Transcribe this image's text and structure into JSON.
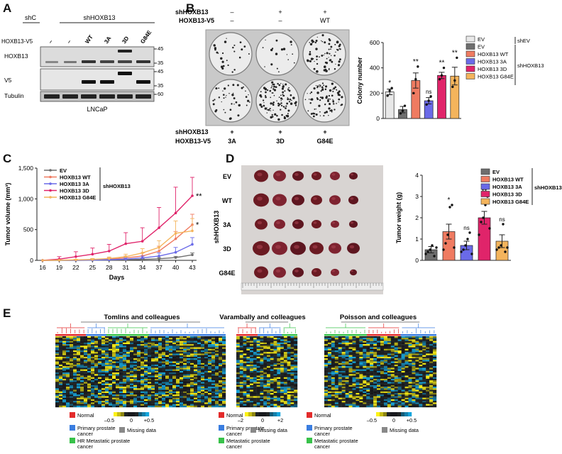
{
  "panels": {
    "A": {
      "letter": "A",
      "lanes_header": {
        "shC": "shC",
        "shHOXB13": "shHOXB13"
      },
      "row_label": "HOXB13-V5",
      "lane_labels": [
        "–",
        "–",
        "WT",
        "3A",
        "3D",
        "G84E"
      ],
      "blots": [
        {
          "name": "HOXB13",
          "markers": [
            "45",
            "35"
          ]
        },
        {
          "name": "V5",
          "markers": [
            "45",
            "35"
          ]
        },
        {
          "name": "Tubulin",
          "markers": [
            "60"
          ]
        }
      ],
      "cell_line": "LNCaP"
    },
    "B": {
      "letter": "B",
      "top_rows": [
        {
          "label": "shHOXB13",
          "values": [
            "–",
            "+",
            "+"
          ]
        },
        {
          "label": "HOXB13-V5",
          "values": [
            "–",
            "–",
            "WT"
          ]
        }
      ],
      "bottom_rows": [
        {
          "label": "shHOXB13",
          "values": [
            "+",
            "+",
            "+"
          ]
        },
        {
          "label": "HOXB13-V5",
          "values": [
            "3A",
            "3D",
            "G84E"
          ]
        }
      ],
      "legend_items": [
        "EV",
        "EV",
        "HOXB13 WT",
        "HOXB13 3A",
        "HOXB13 3D",
        "HOXB13 G84E"
      ],
      "legend_groups": [
        "shEV",
        "shHOXB13"
      ],
      "significance": [
        "*",
        "**",
        "ns",
        "**",
        "**"
      ]
    },
    "C": {
      "letter": "C",
      "legend_items": [
        "EV",
        "HOXB13 WT",
        "HOXB13 3A",
        "HOXB13 3D",
        "HOXB13 G84E"
      ],
      "legend_group": "shHOXB13",
      "significance": [
        "**",
        "*"
      ]
    },
    "D": {
      "letter": "D",
      "photo_rows": [
        "EV",
        "WT",
        "3A",
        "3D",
        "G84E"
      ],
      "photo_side_label": "shHOXB13",
      "legend_items": [
        "EV",
        "HOXB13 WT",
        "HOXB13 3A",
        "HOXB13 3D",
        "HOXB13 G84E"
      ],
      "legend_group": "shHOXB13",
      "significance": [
        "*",
        "ns",
        "**",
        "ns"
      ]
    },
    "E": {
      "letter": "E",
      "heatmaps": [
        {
          "title": "Tomlins and colleagues",
          "legend": [
            "Normal",
            "Primary prostate cancer",
            "HR Metastatic prostate cancer"
          ],
          "scale": [
            "–0.5",
            "0",
            "+0.5"
          ],
          "missing": "Missing data"
        },
        {
          "title": "Varambally and colleagues",
          "legend": [
            "Normal",
            "Primary prostate cancer",
            "Metastatic prostate cancer"
          ],
          "scale": [
            "–2",
            "0",
            "+2"
          ],
          "missing": "Missing data"
        },
        {
          "title": "Poisson and colleagues",
          "legend": [
            "Normal",
            "Primary prostate cancer",
            "Metastatic prostate cancer"
          ],
          "scale": [
            "–0.5",
            "0",
            "+0.5"
          ],
          "missing": "Missing data"
        }
      ]
    }
  },
  "colors": {
    "EV_shEV": "#e8e8e8",
    "EV": "#6e6e6e",
    "WT": "#ef7b61",
    "3A": "#6a6ae8",
    "3D": "#e0246a",
    "G84E": "#f4b45c",
    "normal": "#e32b2b",
    "primary": "#3a7de0",
    "metastatic": "#38c24a"
  },
  "chart_data": [
    {
      "id": "colony",
      "type": "bar",
      "categories": [
        "EV",
        "EV",
        "HOXB13 WT",
        "HOXB13 3A",
        "HOXB13 3D",
        "HOXB13 G84E"
      ],
      "values": [
        210,
        70,
        300,
        140,
        340,
        335
      ],
      "errors": [
        22,
        25,
        60,
        25,
        25,
        70
      ],
      "points": [
        [
          180,
          220,
          240
        ],
        [
          40,
          60,
          100
        ],
        [
          200,
          310,
          410
        ],
        [
          110,
          140,
          175
        ],
        [
          310,
          340,
          400
        ],
        [
          250,
          300,
          480
        ]
      ],
      "ylabel": "Colony number",
      "ylim": [
        0,
        600
      ],
      "yticks": [
        0,
        200,
        400,
        600
      ]
    },
    {
      "id": "tumor_volume",
      "type": "line",
      "x": [
        16,
        19,
        22,
        25,
        28,
        31,
        34,
        37,
        40,
        43
      ],
      "series": [
        {
          "name": "EV",
          "values": [
            0,
            0,
            0,
            2,
            5,
            10,
            15,
            25,
            45,
            90
          ],
          "errors": [
            0,
            0,
            0,
            5,
            8,
            12,
            15,
            20,
            20,
            30
          ]
        },
        {
          "name": "HOXB13 WT",
          "values": [
            0,
            2,
            5,
            10,
            20,
            40,
            70,
            150,
            350,
            580
          ],
          "errors": [
            0,
            5,
            8,
            15,
            20,
            30,
            50,
            80,
            120,
            170
          ]
        },
        {
          "name": "HOXB13 3A",
          "values": [
            0,
            1,
            3,
            5,
            10,
            20,
            40,
            70,
            130,
            260
          ],
          "errors": [
            0,
            3,
            5,
            8,
            12,
            20,
            30,
            50,
            80,
            110
          ]
        },
        {
          "name": "HOXB13 3D",
          "values": [
            0,
            20,
            60,
            100,
            150,
            270,
            310,
            530,
            770,
            1050
          ],
          "errors": [
            0,
            40,
            80,
            100,
            110,
            180,
            220,
            330,
            420,
            300
          ]
        },
        {
          "name": "HOXB13 G84E",
          "values": [
            0,
            3,
            8,
            15,
            30,
            60,
            120,
            210,
            440,
            480
          ],
          "errors": [
            0,
            5,
            10,
            15,
            25,
            40,
            70,
            110,
            200,
            200
          ]
        }
      ],
      "xlabel": "Days",
      "ylabel": "Tumor volume (mm³)",
      "ylim": [
        0,
        1500
      ],
      "yticks": [
        "0",
        "500",
        "1,000",
        "1,500"
      ]
    },
    {
      "id": "tumor_weight",
      "type": "bar",
      "categories": [
        "EV",
        "HOXB13 WT",
        "HOXB13 3A",
        "HOXB13 3D",
        "HOXB13 G84E"
      ],
      "values": [
        0.5,
        1.35,
        0.7,
        2.0,
        0.9
      ],
      "errors": [
        0.15,
        0.35,
        0.2,
        0.3,
        0.3
      ],
      "points": [
        [
          0.3,
          0.4,
          0.5,
          0.7,
          0.2,
          0.6
        ],
        [
          0.5,
          0.8,
          1.2,
          2.5,
          2.6,
          0.6
        ],
        [
          0.4,
          0.5,
          0.7,
          1.0,
          1.3,
          0.3
        ],
        [
          1.2,
          1.8,
          2.0,
          2.6,
          3.0,
          1.5
        ],
        [
          0.5,
          0.6,
          0.7,
          1.7,
          0.4,
          0.6
        ]
      ],
      "ylabel": "Tumor weight (g)",
      "ylim": [
        0,
        4
      ],
      "yticks": [
        0,
        1,
        2,
        3,
        4
      ]
    }
  ]
}
